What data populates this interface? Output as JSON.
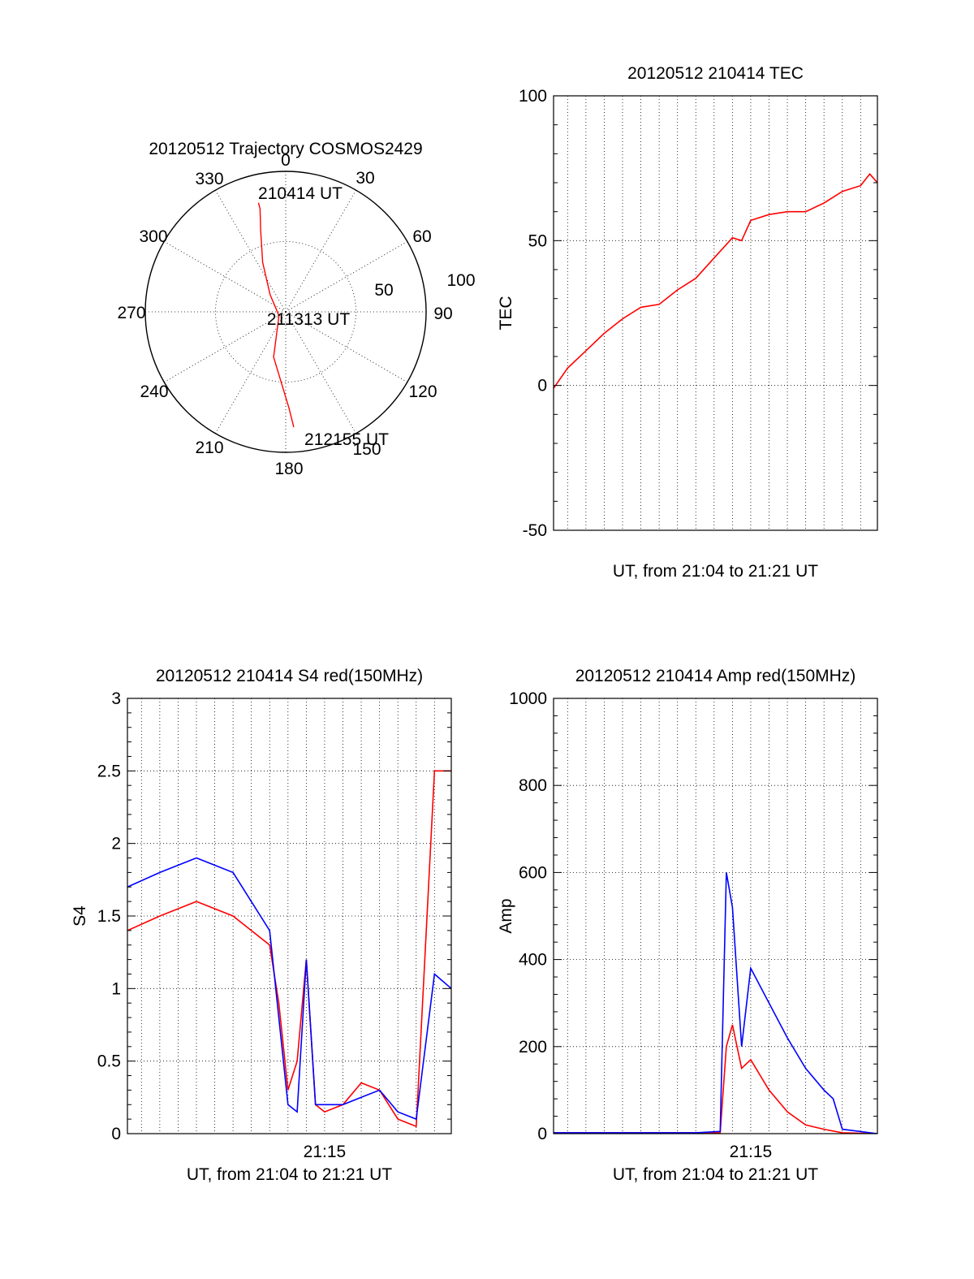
{
  "chart_data": [
    {
      "type": "polar",
      "title": "20120512 Trajectory COSMOS2429",
      "angle_labels": [
        "0",
        "30",
        "60",
        "90",
        "120",
        "150",
        "180",
        "210",
        "240",
        "270",
        "300",
        "330"
      ],
      "radius_labels": [
        "50",
        "100"
      ],
      "rlim": [
        0,
        100
      ],
      "series": [
        {
          "color": "#ff0000",
          "azimuth": [
            346,
            346,
            343,
            335,
            318,
            240,
            195,
            178,
            176
          ],
          "elevation": [
            18,
            22,
            35,
            55,
            75,
            85,
            60,
            28,
            16
          ]
        }
      ],
      "annotations": [
        {
          "text": "210414 UT",
          "azimuth": 346,
          "elevation": 18
        },
        {
          "text": "211313 UT",
          "azimuth": 240,
          "elevation": 85
        },
        {
          "text": "212155 UT",
          "azimuth": 176,
          "elevation": 16
        }
      ]
    },
    {
      "type": "line",
      "title": "20120512 210414 TEC",
      "xlabel": "UT, from 21:04 to 21:21 UT",
      "ylabel": "TEC",
      "xlim": [
        "21:04:14",
        "21:21:55"
      ],
      "ylim": [
        -50,
        100
      ],
      "yticks": [
        "-50",
        "0",
        "50",
        "100"
      ],
      "grid": true,
      "series": [
        {
          "color": "#ff0000",
          "x": [
            "21:04:14",
            "21:05:00",
            "21:06:00",
            "21:07:00",
            "21:08:00",
            "21:09:00",
            "21:10:00",
            "21:11:00",
            "21:12:00",
            "21:13:00",
            "21:14:00",
            "21:14:30",
            "21:15:00",
            "21:16:00",
            "21:17:00",
            "21:18:00",
            "21:19:00",
            "21:20:00",
            "21:21:00",
            "21:21:30",
            "21:21:55"
          ],
          "y": [
            -1,
            6,
            12,
            18,
            23,
            27,
            28,
            33,
            37,
            44,
            51,
            50,
            57,
            59,
            60,
            60,
            63,
            67,
            69,
            73,
            70
          ]
        }
      ]
    },
    {
      "type": "line",
      "title": "20120512 210414 S4 red(150MHz)",
      "xlabel": "UT, from 21:04 to 21:21 UT",
      "ylabel": "S4",
      "xlim": [
        "21:04:14",
        "21:21:55"
      ],
      "ylim": [
        0,
        3
      ],
      "yticks": [
        "0",
        "0.5",
        "1",
        "1.5",
        "2",
        "2.5",
        "3"
      ],
      "xticks": [
        "21:15"
      ],
      "grid": true,
      "series": [
        {
          "color": "#ff0000",
          "x": [
            "21:04:14",
            "21:06:00",
            "21:08:00",
            "21:10:00",
            "21:12:00",
            "21:12:30",
            "21:13:00",
            "21:13:30",
            "21:14:00",
            "21:14:30",
            "21:15:00",
            "21:16:00",
            "21:17:00",
            "21:18:00",
            "21:19:00",
            "21:20:00",
            "21:21:00",
            "21:21:55"
          ],
          "y": [
            1.4,
            1.5,
            1.6,
            1.5,
            1.3,
            0.9,
            0.3,
            0.5,
            1.2,
            0.2,
            0.15,
            0.2,
            0.35,
            0.3,
            0.1,
            0.05,
            2.5,
            2.5
          ]
        },
        {
          "color": "#0000ff",
          "x": [
            "21:04:14",
            "21:06:00",
            "21:08:00",
            "21:10:00",
            "21:12:00",
            "21:12:30",
            "21:13:00",
            "21:13:30",
            "21:14:00",
            "21:14:30",
            "21:15:00",
            "21:16:00",
            "21:17:00",
            "21:18:00",
            "21:19:00",
            "21:20:00",
            "21:21:00",
            "21:21:55"
          ],
          "y": [
            1.7,
            1.8,
            1.9,
            1.8,
            1.4,
            0.8,
            0.2,
            0.15,
            1.2,
            0.2,
            0.2,
            0.2,
            0.25,
            0.3,
            0.15,
            0.1,
            1.1,
            1.0
          ]
        }
      ]
    },
    {
      "type": "line",
      "title": "20120512 210414 Amp red(150MHz)",
      "xlabel": "UT, from 21:04 to 21:21 UT",
      "ylabel": "Amp",
      "xlim": [
        "21:04:14",
        "21:21:55"
      ],
      "ylim": [
        0,
        1000
      ],
      "yticks": [
        "0",
        "200",
        "400",
        "600",
        "800",
        "1000"
      ],
      "xticks": [
        "21:15"
      ],
      "grid": true,
      "series": [
        {
          "color": "#ff0000",
          "x": [
            "21:04:14",
            "21:12:00",
            "21:13:20",
            "21:13:40",
            "21:14:00",
            "21:14:30",
            "21:15:00",
            "21:16:00",
            "21:17:00",
            "21:18:00",
            "21:19:00",
            "21:20:00",
            "21:21:55"
          ],
          "y": [
            2,
            2,
            2,
            200,
            250,
            150,
            170,
            100,
            50,
            20,
            10,
            2,
            0
          ]
        },
        {
          "color": "#0000ff",
          "x": [
            "21:04:14",
            "21:12:00",
            "21:13:20",
            "21:13:40",
            "21:14:00",
            "21:14:30",
            "21:15:00",
            "21:16:00",
            "21:17:00",
            "21:18:00",
            "21:19:00",
            "21:19:30",
            "21:20:00",
            "21:21:55"
          ],
          "y": [
            2,
            2,
            5,
            600,
            520,
            200,
            380,
            300,
            220,
            150,
            100,
            80,
            10,
            0
          ]
        }
      ]
    }
  ]
}
